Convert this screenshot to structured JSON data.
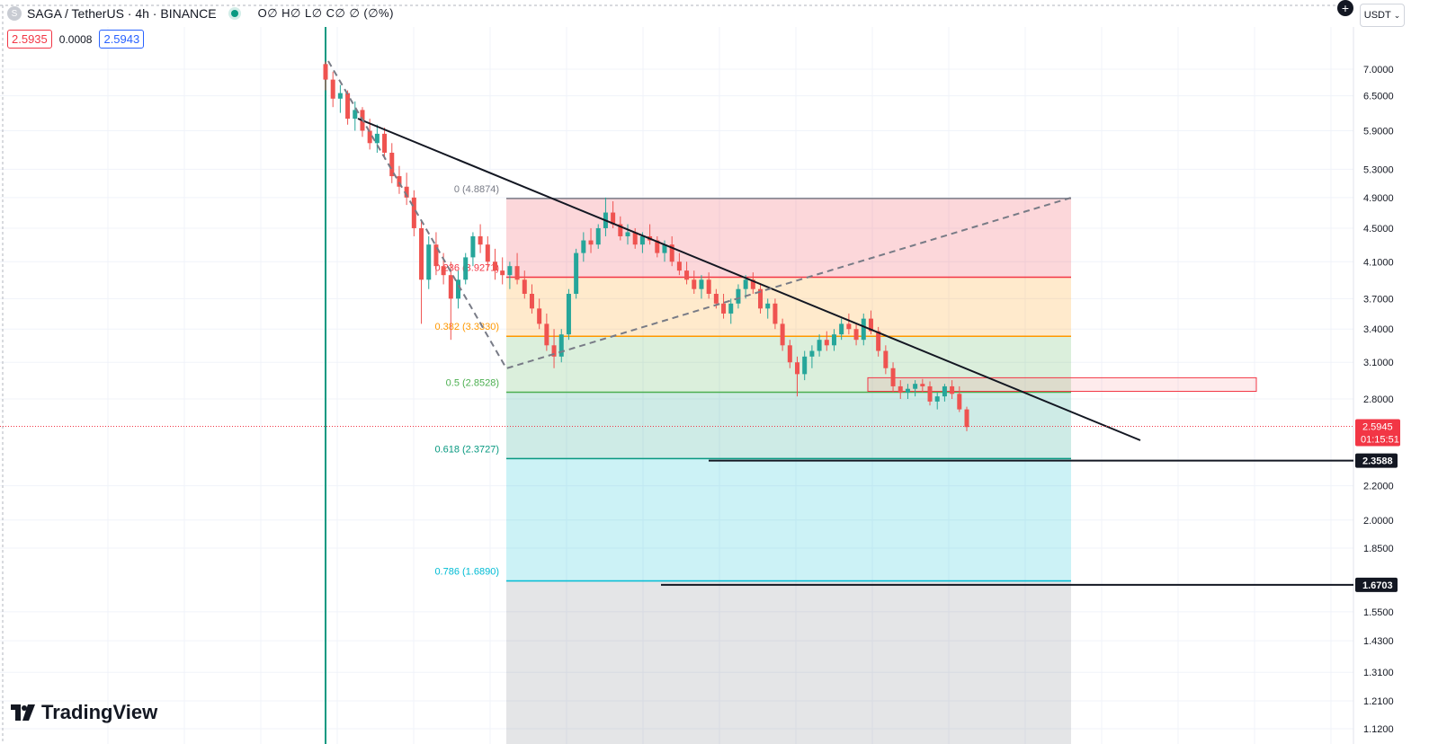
{
  "header": {
    "symbol_icon": "S",
    "title": "SAGA / TetherUS · 4h · BINANCE",
    "ohlc": "O∅ H∅ L∅ C∅ ∅ (∅%)"
  },
  "quotes": {
    "bid": "2.5935",
    "spread": "0.0008",
    "ask": "2.5943"
  },
  "currency_selector": {
    "label": "USDT",
    "icon": "chevron-down-icon"
  },
  "add_button_icon": "plus-circle-icon",
  "logo": {
    "text": "TradingView",
    "icon": "tradingview-logo-icon"
  },
  "colors": {
    "up": "#26a69a",
    "down": "#ef5350",
    "trend": "#131722",
    "fib_0": "#787b86",
    "fib_236": "#f23645",
    "fib_382": "#ff9800",
    "fib_5": "#4caf50",
    "fib_618": "#089981",
    "fib_786": "#00bcd4",
    "cursor_line": "#089981",
    "last_price_bg": "#f23645"
  },
  "chart_data": {
    "type": "candlestick",
    "y_scale": "log",
    "ylim": [
      1.12,
      7.7
    ],
    "y_ticks": [
      "7.0000",
      "6.5000",
      "5.9000",
      "5.3000",
      "4.9000",
      "4.5000",
      "4.1000",
      "3.7000",
      "3.4000",
      "3.1000",
      "2.8000",
      "2.2000",
      "2.0000",
      "1.8500",
      "1.5500",
      "1.4300",
      "1.3100",
      "1.2100",
      "1.1200"
    ],
    "last_price": {
      "value": "2.5945",
      "countdown": "01:15:51"
    },
    "price_markers": [
      "2.3588",
      "1.6703"
    ],
    "fib_levels": [
      {
        "ratio": 0,
        "label": "0 (4.8874)",
        "price": 4.8874
      },
      {
        "ratio": 0.236,
        "label": "0.236 (3.9271)",
        "price": 3.9271
      },
      {
        "ratio": 0.382,
        "label": "0.382 (3.3330)",
        "price": 3.333
      },
      {
        "ratio": 0.5,
        "label": "0.5 (2.8528)",
        "price": 2.8528
      },
      {
        "ratio": 0.618,
        "label": "0.618 (2.3727)",
        "price": 2.3727
      },
      {
        "ratio": 0.786,
        "label": "0.786 (1.6890)",
        "price": 1.689
      }
    ],
    "horizontal_lines": [
      2.3588,
      1.6703
    ],
    "resistance_zone": {
      "top": 2.97,
      "bottom": 2.86
    },
    "candles": [
      [
        7.1,
        7.15,
        6.6,
        6.8
      ],
      [
        6.8,
        6.95,
        6.3,
        6.45
      ],
      [
        6.45,
        6.7,
        6.2,
        6.55
      ],
      [
        6.55,
        6.6,
        6.0,
        6.1
      ],
      [
        6.1,
        6.4,
        5.9,
        6.25
      ],
      [
        6.25,
        6.3,
        5.8,
        5.9
      ],
      [
        5.9,
        6.1,
        5.6,
        5.7
      ],
      [
        5.7,
        6.0,
        5.55,
        5.85
      ],
      [
        5.85,
        5.95,
        5.45,
        5.55
      ],
      [
        5.55,
        5.7,
        5.1,
        5.2
      ],
      [
        5.2,
        5.35,
        4.95,
        5.05
      ],
      [
        5.05,
        5.25,
        4.8,
        4.9
      ],
      [
        4.9,
        5.0,
        4.4,
        4.5
      ],
      [
        4.5,
        4.6,
        3.45,
        3.9
      ],
      [
        3.9,
        4.4,
        3.8,
        4.3
      ],
      [
        4.3,
        4.45,
        3.95,
        4.05
      ],
      [
        4.05,
        4.2,
        3.85,
        3.95
      ],
      [
        3.95,
        4.1,
        3.3,
        3.7
      ],
      [
        3.7,
        4.0,
        3.6,
        3.9
      ],
      [
        3.9,
        4.2,
        3.85,
        4.15
      ],
      [
        4.15,
        4.45,
        4.05,
        4.4
      ],
      [
        4.4,
        4.55,
        4.2,
        4.3
      ],
      [
        4.3,
        4.4,
        4.0,
        4.1
      ],
      [
        4.1,
        4.25,
        3.9,
        4.0
      ],
      [
        4.0,
        4.15,
        3.85,
        3.95
      ],
      [
        3.95,
        4.1,
        3.8,
        4.05
      ],
      [
        4.05,
        4.2,
        3.85,
        3.9
      ],
      [
        3.9,
        4.0,
        3.7,
        3.75
      ],
      [
        3.75,
        3.85,
        3.55,
        3.6
      ],
      [
        3.6,
        3.7,
        3.4,
        3.45
      ],
      [
        3.45,
        3.55,
        3.2,
        3.25
      ],
      [
        3.25,
        3.4,
        3.05,
        3.15
      ],
      [
        3.15,
        3.4,
        3.1,
        3.35
      ],
      [
        3.35,
        3.8,
        3.3,
        3.75
      ],
      [
        3.75,
        4.25,
        3.7,
        4.2
      ],
      [
        4.2,
        4.45,
        4.1,
        4.35
      ],
      [
        4.35,
        4.5,
        4.2,
        4.3
      ],
      [
        4.3,
        4.55,
        4.25,
        4.5
      ],
      [
        4.5,
        4.9,
        4.4,
        4.7
      ],
      [
        4.7,
        4.85,
        4.5,
        4.55
      ],
      [
        4.55,
        4.65,
        4.35,
        4.4
      ],
      [
        4.4,
        4.55,
        4.3,
        4.45
      ],
      [
        4.45,
        4.5,
        4.25,
        4.3
      ],
      [
        4.3,
        4.45,
        4.2,
        4.4
      ],
      [
        4.4,
        4.55,
        4.3,
        4.35
      ],
      [
        4.35,
        4.4,
        4.15,
        4.2
      ],
      [
        4.2,
        4.35,
        4.1,
        4.3
      ],
      [
        4.3,
        4.4,
        4.05,
        4.1
      ],
      [
        4.1,
        4.2,
        3.95,
        4.0
      ],
      [
        4.0,
        4.1,
        3.85,
        3.9
      ],
      [
        3.9,
        4.0,
        3.75,
        3.8
      ],
      [
        3.8,
        3.95,
        3.7,
        3.9
      ],
      [
        3.9,
        3.98,
        3.7,
        3.75
      ],
      [
        3.75,
        3.8,
        3.6,
        3.65
      ],
      [
        3.65,
        3.75,
        3.5,
        3.55
      ],
      [
        3.55,
        3.7,
        3.45,
        3.65
      ],
      [
        3.65,
        3.85,
        3.6,
        3.8
      ],
      [
        3.8,
        3.95,
        3.7,
        3.9
      ],
      [
        3.9,
        3.98,
        3.75,
        3.8
      ],
      [
        3.8,
        3.85,
        3.55,
        3.6
      ],
      [
        3.6,
        3.7,
        3.5,
        3.65
      ],
      [
        3.65,
        3.7,
        3.4,
        3.45
      ],
      [
        3.45,
        3.5,
        3.2,
        3.25
      ],
      [
        3.25,
        3.3,
        3.05,
        3.1
      ],
      [
        3.1,
        3.15,
        2.82,
        3.0
      ],
      [
        3.0,
        3.2,
        2.95,
        3.15
      ],
      [
        3.15,
        3.25,
        3.05,
        3.2
      ],
      [
        3.2,
        3.35,
        3.15,
        3.3
      ],
      [
        3.3,
        3.38,
        3.2,
        3.25
      ],
      [
        3.25,
        3.4,
        3.2,
        3.35
      ],
      [
        3.35,
        3.5,
        3.3,
        3.45
      ],
      [
        3.45,
        3.55,
        3.35,
        3.4
      ],
      [
        3.4,
        3.45,
        3.25,
        3.3
      ],
      [
        3.3,
        3.55,
        3.25,
        3.5
      ],
      [
        3.5,
        3.58,
        3.35,
        3.38
      ],
      [
        3.38,
        3.42,
        3.15,
        3.2
      ],
      [
        3.2,
        3.25,
        3.0,
        3.05
      ],
      [
        3.05,
        3.1,
        2.85,
        2.9
      ],
      [
        2.9,
        2.95,
        2.8,
        2.85
      ],
      [
        2.85,
        2.92,
        2.8,
        2.88
      ],
      [
        2.88,
        2.95,
        2.82,
        2.92
      ],
      [
        2.92,
        2.96,
        2.85,
        2.9
      ],
      [
        2.9,
        2.94,
        2.75,
        2.78
      ],
      [
        2.78,
        2.85,
        2.72,
        2.82
      ],
      [
        2.82,
        2.92,
        2.78,
        2.9
      ],
      [
        2.9,
        2.95,
        2.8,
        2.84
      ],
      [
        2.84,
        2.9,
        2.7,
        2.72
      ],
      [
        2.72,
        2.74,
        2.56,
        2.59
      ]
    ]
  }
}
